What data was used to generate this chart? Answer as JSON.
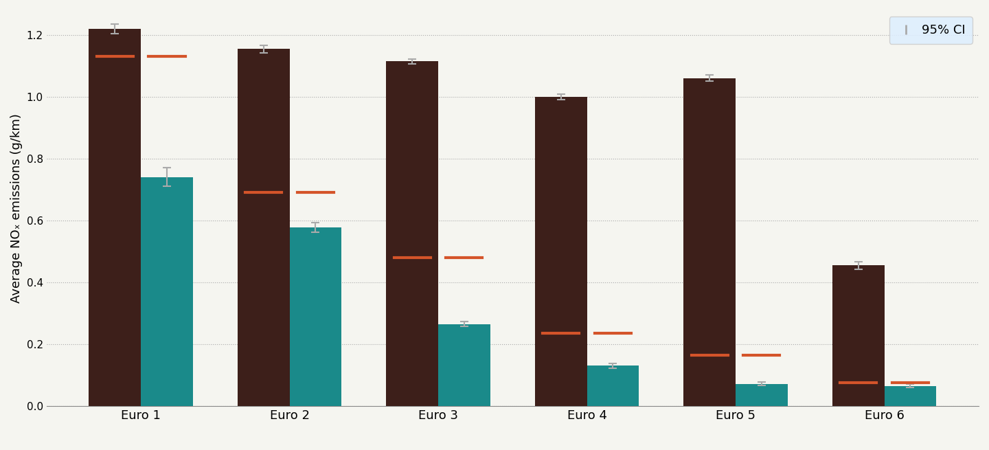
{
  "categories": [
    "Euro 1",
    "Euro 2",
    "Euro 3",
    "Euro 4",
    "Euro 5",
    "Euro 6"
  ],
  "diesel_values": [
    1.22,
    1.155,
    1.115,
    1.0,
    1.06,
    0.455
  ],
  "gasoline_values": [
    0.74,
    0.578,
    0.265,
    0.13,
    0.072,
    0.065
  ],
  "diesel_ci": [
    0.015,
    0.012,
    0.008,
    0.008,
    0.01,
    0.012
  ],
  "gasoline_ci": [
    0.03,
    0.015,
    0.008,
    0.007,
    0.006,
    0.005
  ],
  "diesel_limit": [
    1.13,
    0.69,
    0.48,
    0.235,
    0.165,
    0.075
  ],
  "diesel_color": "#3d1f1a",
  "gasoline_color": "#1a8a8a",
  "limit_color": "#d4542a",
  "error_color": "#aaaaaa",
  "background_color": "#f5f5f0",
  "ylabel": "Average NOₓ emissions (g/km)",
  "ylim": [
    0,
    1.28
  ],
  "yticks": [
    0.0,
    0.2,
    0.4,
    0.6,
    0.8,
    1.0,
    1.2
  ],
  "bar_width": 0.35,
  "legend_label_ci": "95% CI"
}
